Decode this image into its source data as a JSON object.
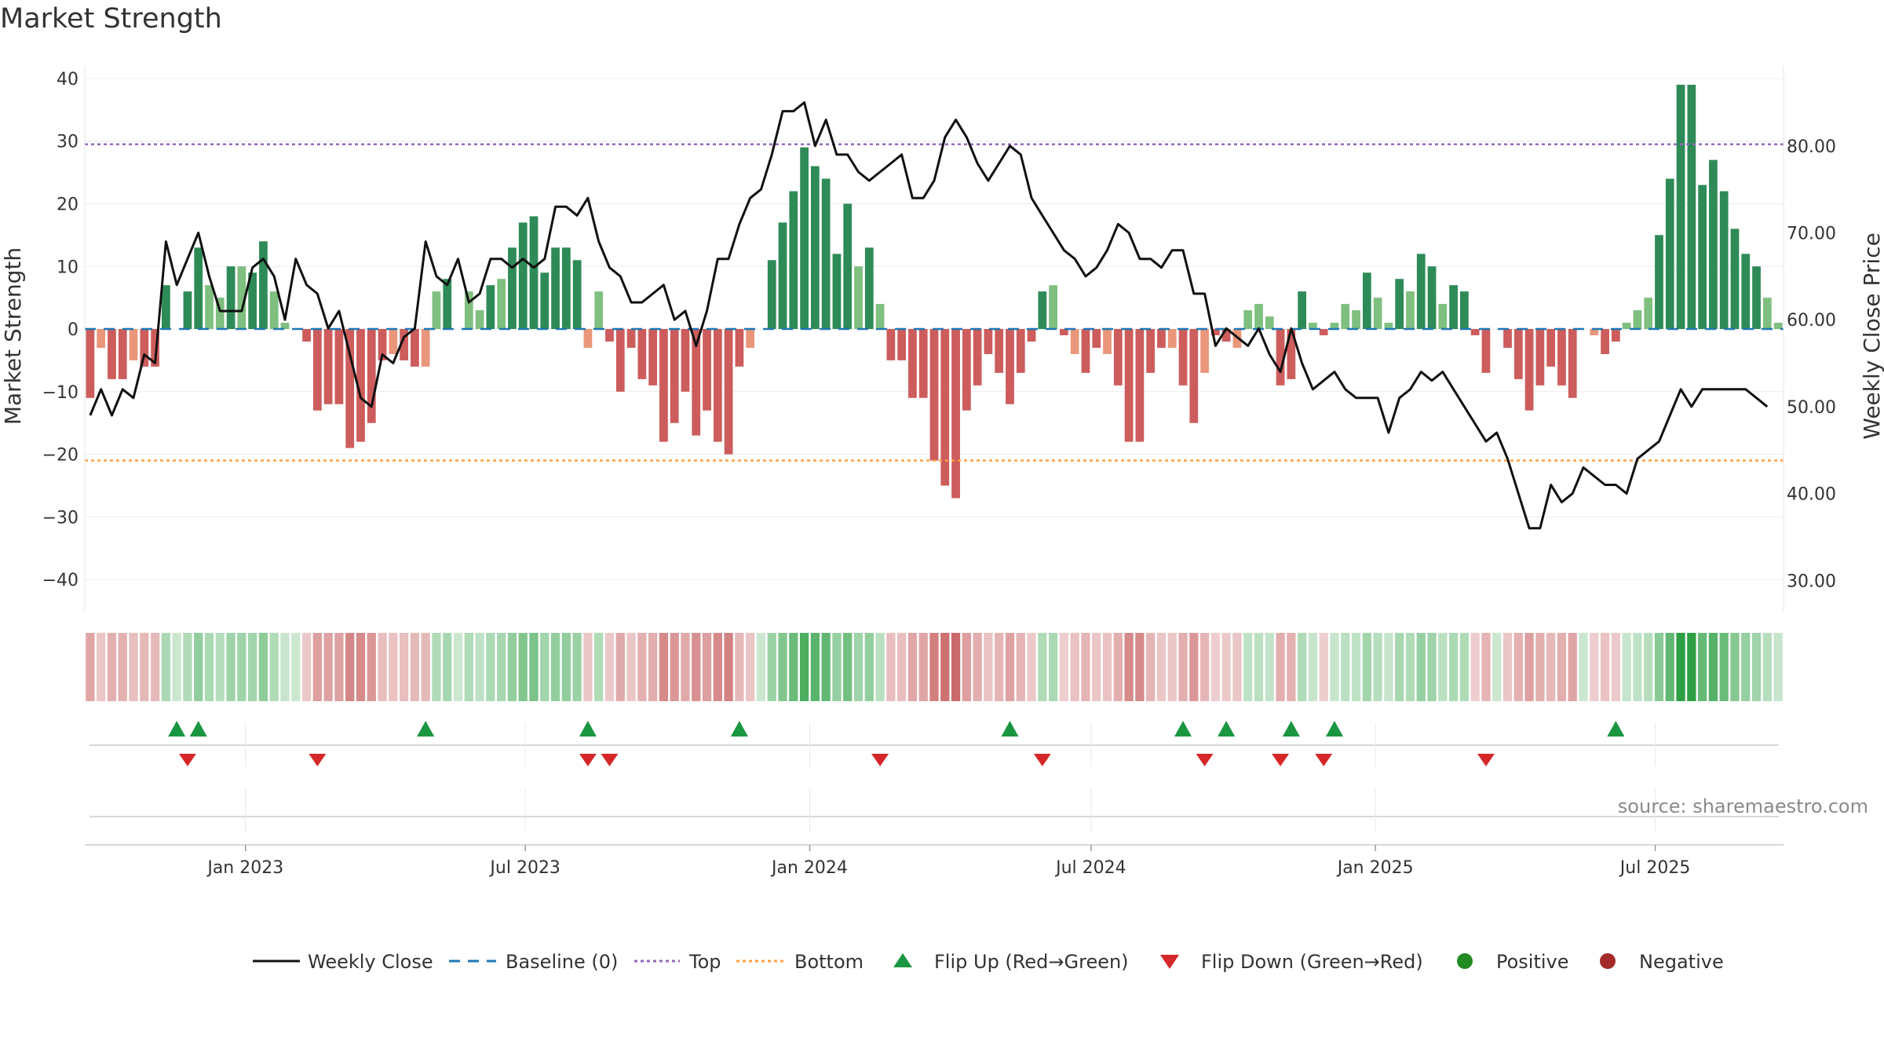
{
  "title": "Market Strength",
  "source": "source: sharemaestro.com",
  "chart_data": {
    "type": "bar",
    "title": "Market Strength",
    "ylabel_left": "Market Strength",
    "ylabel_right": "Weekly Close Price",
    "ylim_left": [
      -45,
      42
    ],
    "ylim_right": [
      26.5,
      89.2
    ],
    "yticks_left": [
      40,
      30,
      20,
      10,
      0,
      -10,
      -20,
      -30,
      -40
    ],
    "yticks_right": [
      "80.00",
      "70.00",
      "60.00",
      "50.00",
      "40.00",
      "30.00"
    ],
    "yticks_right_values": [
      80,
      70,
      60,
      50,
      40,
      30
    ],
    "x_start": "2022-09-19",
    "x_end": "2025-09-22",
    "x_tick_labels": [
      "Jan 2023",
      "Jul 2023",
      "Jan 2024",
      "Jul 2024",
      "Jan 2025",
      "Jul 2025"
    ],
    "x_tick_dates": [
      "2023-01-01",
      "2023-07-01",
      "2024-01-01",
      "2024-07-01",
      "2025-01-01",
      "2025-07-01"
    ],
    "top_line": 29.5,
    "bottom_line": -21,
    "baseline": 0,
    "grid": true,
    "legend_position": "bottom",
    "strength": [
      -11,
      -3,
      -8,
      -8,
      -5,
      -6,
      -6,
      7,
      0,
      6,
      13,
      7,
      5,
      10,
      10,
      9,
      14,
      6,
      1,
      0,
      -2,
      -13,
      -12,
      -12,
      -19,
      -18,
      -15,
      -5,
      -4,
      -5,
      -6,
      -6,
      6,
      8,
      0,
      6,
      3,
      7,
      8,
      13,
      17,
      18,
      9,
      13,
      13,
      11,
      -3,
      6,
      -2,
      -10,
      -3,
      -8,
      -9,
      -18,
      -15,
      -10,
      -17,
      -13,
      -18,
      -20,
      -6,
      -3,
      0,
      11,
      17,
      22,
      29,
      26,
      24,
      12,
      20,
      10,
      13,
      4,
      -5,
      -5,
      -11,
      -11,
      -21,
      -25,
      -27,
      -13,
      -9,
      -4,
      -7,
      -12,
      -7,
      -2,
      6,
      7,
      -1,
      -4,
      -7,
      -3,
      -4,
      -9,
      -18,
      -18,
      -7,
      -3,
      -3,
      -9,
      -15,
      -7,
      -1,
      -2,
      -3,
      3,
      4,
      2,
      -9,
      -8,
      6,
      1,
      -1,
      1,
      4,
      3,
      9,
      5,
      1,
      8,
      6,
      12,
      10,
      4,
      7,
      6,
      -1,
      -7,
      0,
      -3,
      -8,
      -13,
      -9,
      -6,
      -9,
      -11,
      0,
      -1,
      -4,
      -2,
      1,
      3,
      5,
      15,
      24,
      39,
      39,
      23,
      27,
      22,
      16,
      12,
      10,
      5,
      1
    ],
    "weekly_close": [
      49,
      52,
      49,
      52,
      51,
      56,
      55,
      69,
      64,
      67,
      70,
      65,
      61,
      61,
      61,
      66,
      67,
      65,
      60,
      67,
      64,
      63,
      59,
      61,
      56,
      51,
      50,
      56,
      55,
      58,
      59,
      69,
      65,
      64,
      67,
      62,
      63,
      67,
      67,
      66,
      67,
      66,
      67,
      73,
      73,
      72,
      74,
      69,
      66,
      65,
      62,
      62,
      63,
      64,
      60,
      61,
      57,
      61,
      67,
      67,
      71,
      74,
      75,
      79,
      84,
      84,
      85,
      80,
      83,
      79,
      79,
      77,
      76,
      77,
      78,
      79,
      74,
      74,
      76,
      81,
      83,
      81,
      78,
      76,
      78,
      80,
      79,
      74,
      72,
      70,
      68,
      67,
      65,
      66,
      68,
      71,
      70,
      67,
      67,
      66,
      68,
      68,
      63,
      63,
      57,
      59,
      58,
      57,
      59,
      56,
      54,
      59,
      55,
      52,
      53,
      54,
      52,
      51,
      51,
      51,
      47,
      51,
      52,
      54,
      53,
      54,
      52,
      50,
      48,
      46,
      47,
      44,
      40,
      36,
      36,
      41,
      39,
      40,
      43,
      42,
      41,
      41,
      40,
      44,
      45,
      46,
      49,
      52,
      50,
      52,
      52,
      52,
      52,
      52,
      51,
      50
    ]
  },
  "regime_strip_label": "",
  "signals": {
    "flip_up_weeks": [
      8,
      10,
      31,
      46,
      60,
      85,
      101,
      105,
      111,
      115,
      141
    ],
    "flip_down_weeks": [
      9,
      21,
      46,
      48,
      73,
      88,
      103,
      110,
      114,
      129
    ]
  },
  "legend": {
    "items": [
      "Weekly Close",
      "Baseline (0)",
      "Top",
      "Bottom",
      "Flip Up (Red→Green)",
      "Flip Down (Green→Red)",
      "Positive",
      "Negative"
    ]
  },
  "colors": {
    "positive_dark": "#2e8b57",
    "positive_light": "#7fbf7f",
    "negative_dark": "#cd5c5c",
    "negative_light": "#e9967a",
    "close_line": "#111111",
    "baseline": "#1f77b4",
    "top": "#9467bd",
    "bottom": "#ff9f40",
    "flip_up": "#1a9641",
    "flip_down": "#d62728",
    "legend_positive": "#228b22",
    "legend_negative": "#a52a2a"
  }
}
